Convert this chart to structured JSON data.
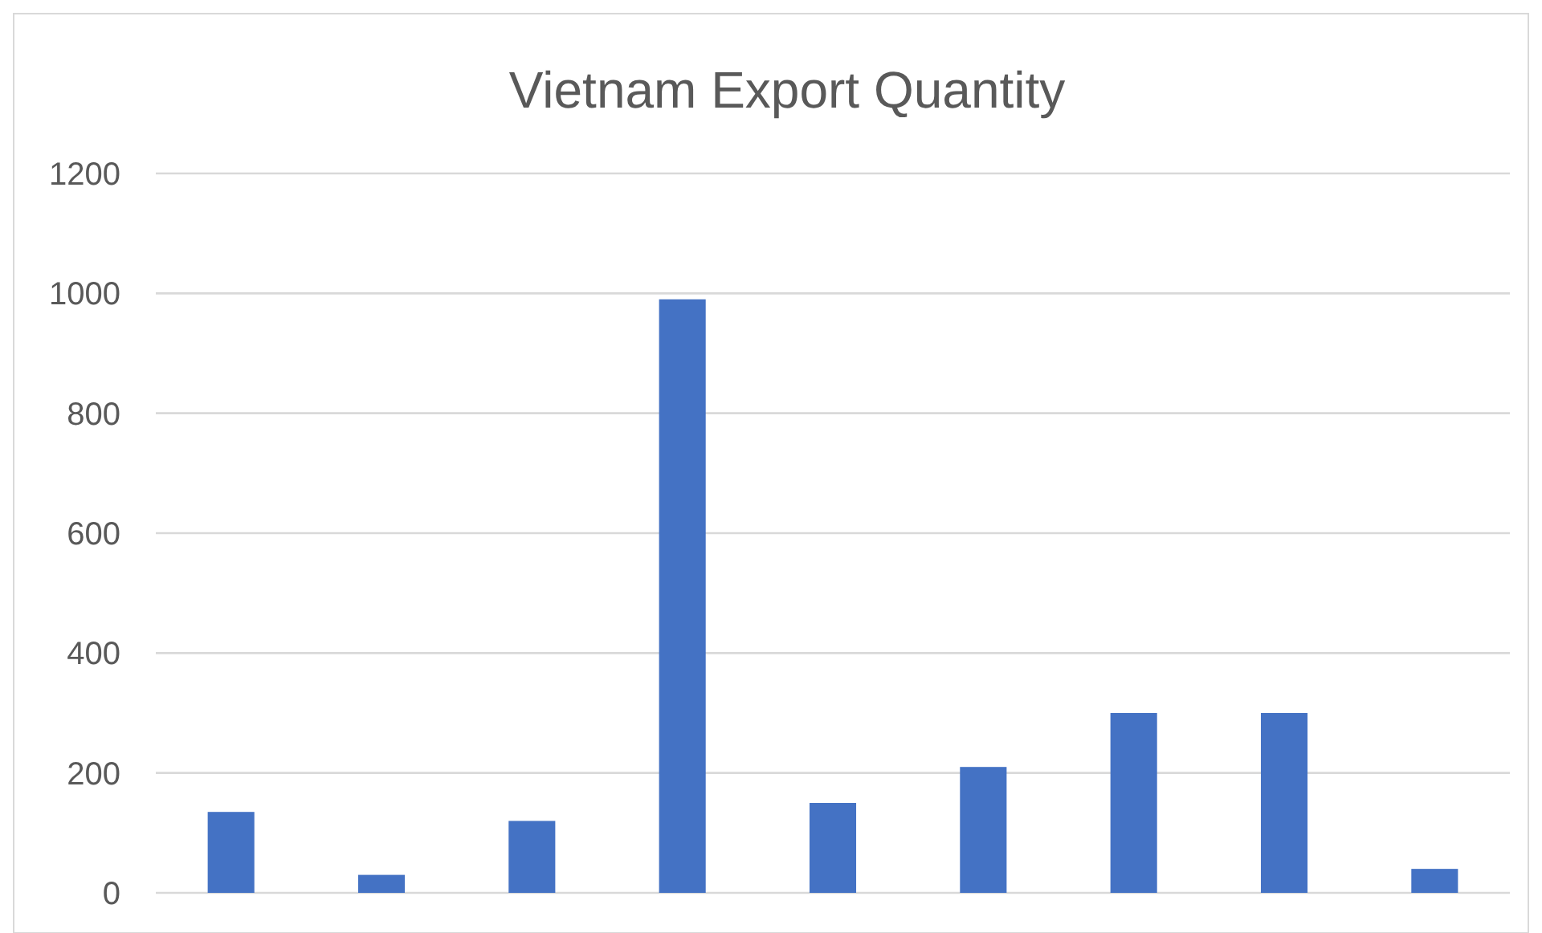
{
  "chart_data": {
    "type": "bar",
    "title": "Vietnam Export Quantity",
    "categories": [
      null,
      null,
      null,
      null,
      null,
      null,
      null,
      null,
      null
    ],
    "values": [
      135,
      30,
      120,
      990,
      150,
      210,
      300,
      300,
      40
    ],
    "color": "#4472c4",
    "ylim": [
      0,
      1200
    ],
    "yticks": [
      0,
      200,
      400,
      600,
      800,
      1000,
      1200
    ],
    "grid": true,
    "tick_labels": "y"
  }
}
